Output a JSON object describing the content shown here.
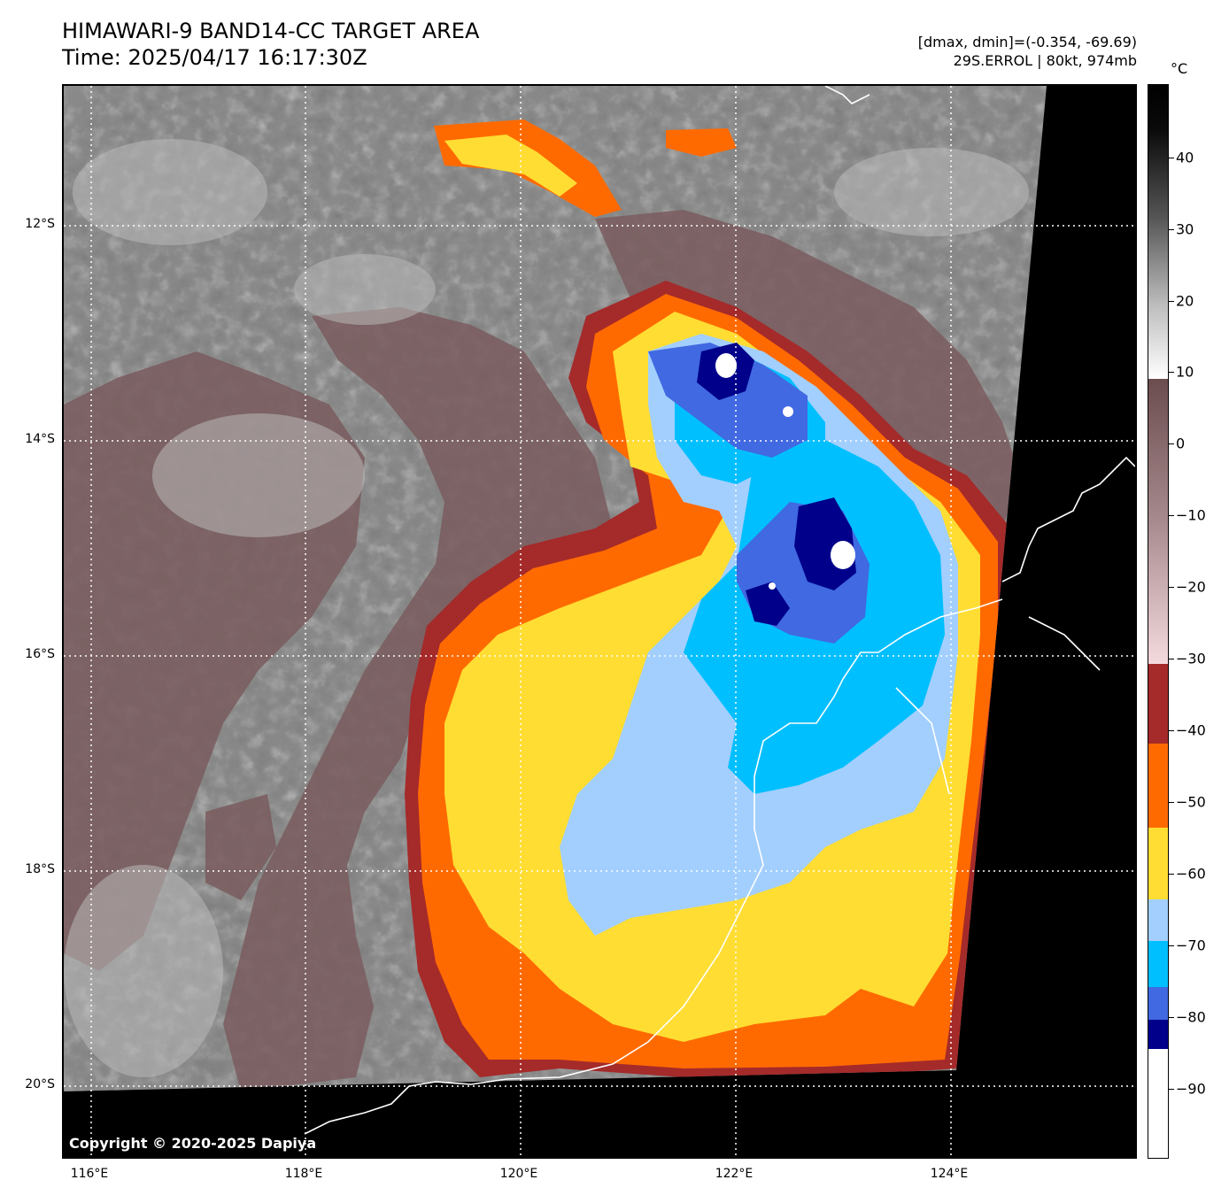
{
  "title": {
    "line1": "HIMAWARI-9 BAND14-CC TARGET AREA",
    "line2": "Time: 2025/04/17 16:17:30Z"
  },
  "info": {
    "range": "[dmax, dmin]=(-0.354, -69.69)",
    "storm": "29S.ERROL | 80kt, 974mb"
  },
  "colorbar": {
    "unit": "°C",
    "ticks": [
      "40",
      "30",
      "20",
      "10",
      "0",
      "−10",
      "−20",
      "−30",
      "−40",
      "−50",
      "−60",
      "−70",
      "−80",
      "−90"
    ],
    "colors": {
      "white": "#ffffff",
      "navy": "#00008b",
      "royal_blue": "#4169e1",
      "deep_sky_blue": "#00bfff",
      "light_blue": "#a2cffe",
      "yellow": "#ffdd33",
      "orange": "#ff6a00",
      "dark_red": "#a52a2a",
      "pink": "#f4d8dc",
      "brown_gray": "#7a5c5e",
      "black": "#000000"
    }
  },
  "axes": {
    "lat_labels": [
      "12°S",
      "14°S",
      "16°S",
      "18°S",
      "20°S"
    ],
    "lon_labels": [
      "116°E",
      "118°E",
      "120°E",
      "122°E",
      "124°E"
    ]
  },
  "map": {
    "copyright": "Copyright © 2020-2025 Dapiya",
    "icons": [
      "coastline-icon",
      "gridline-icon"
    ]
  }
}
